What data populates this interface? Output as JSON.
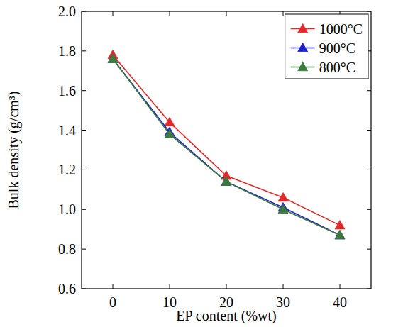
{
  "chart_data": {
    "type": "line",
    "x_label": "EP content (%wt)",
    "y_label": "Bulk density (g/cm³)",
    "x": [
      0,
      10,
      20,
      30,
      40
    ],
    "xlim": [
      -5.5,
      45.5
    ],
    "xticks": [
      0,
      10,
      20,
      30,
      40
    ],
    "ylim": [
      0.6,
      2.0
    ],
    "yticks": [
      0.6,
      0.8,
      {
        "value": 1,
        "label": "1.0"
      },
      1.2,
      1.4,
      1.6,
      1.8,
      {
        "value": 2,
        "label": "2.0"
      }
    ],
    "grid": false,
    "legend": "upper right",
    "series": [
      {
        "name": "1000°C",
        "color": "#e02a2a",
        "marker": "triangle",
        "line_style": "solid",
        "values": [
          1.78,
          1.44,
          1.17,
          1.06,
          0.92
        ]
      },
      {
        "name": "900°C",
        "color": "#1f22cc",
        "marker": "triangle",
        "line_style": "solid",
        "values": [
          1.76,
          1.39,
          1.14,
          1.01,
          0.87
        ]
      },
      {
        "name": "800°C",
        "color": "#3d7a3d",
        "marker": "triangle",
        "line_style": "solid",
        "values": [
          1.76,
          1.38,
          1.14,
          1.0,
          0.87
        ]
      }
    ]
  }
}
